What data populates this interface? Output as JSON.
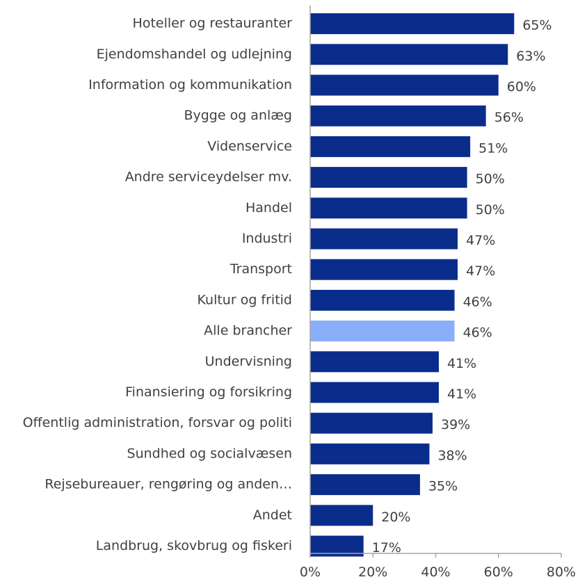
{
  "chart_data": {
    "type": "bar",
    "orientation": "horizontal",
    "categories": [
      "Hoteller og restauranter",
      "Ejendomshandel og udlejning",
      "Information og kommunikation",
      "Bygge og anlæg",
      "Videnservice",
      "Andre serviceydelser  mv.",
      "Handel",
      "Industri",
      "Transport",
      "Kultur og fritid",
      "Alle brancher",
      "Undervisning",
      "Finansiering og forsikring",
      "Offentlig administration, forsvar og politi",
      "Sundhed og socialvæsen",
      "Rejsebureauer, rengøring og anden…",
      "Andet",
      "Landbrug, skovbrug og fiskeri"
    ],
    "values": [
      65,
      63,
      60,
      56,
      51,
      50,
      50,
      47,
      47,
      46,
      46,
      41,
      41,
      39,
      38,
      35,
      20,
      17
    ],
    "value_labels": [
      "65%",
      "63%",
      "60%",
      "56%",
      "51%",
      "50%",
      "50%",
      "47%",
      "47%",
      "46%",
      "46%",
      "41%",
      "41%",
      "39%",
      "38%",
      "35%",
      "20%",
      "17%"
    ],
    "highlight_category": "Alle brancher",
    "xlim": [
      0,
      80
    ],
    "x_ticks": [
      0,
      20,
      40,
      60,
      80
    ],
    "x_tick_labels": [
      "0%",
      "20%",
      "40%",
      "60%",
      "80%"
    ],
    "title": "",
    "xlabel": "",
    "ylabel": "",
    "grid": false,
    "legend": "none",
    "colors": {
      "bar": "#0a2d8c",
      "highlight": "#8aaffa",
      "axis": "#a6a6a6",
      "text": "#404040"
    }
  }
}
